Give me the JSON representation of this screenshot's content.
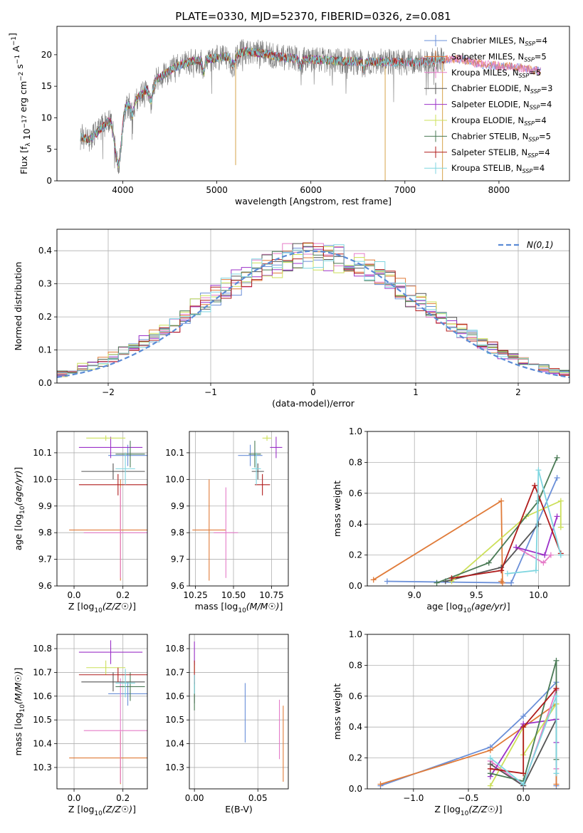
{
  "figure": {
    "title": "PLATE=0330, MJD=52370, FIBERID=0326, z=0.081"
  },
  "colors": {
    "Chabrier MILES": "#6a8fd8",
    "Salpeter MILES": "#e07b39",
    "Kroupa MILES": "#e57bc8",
    "Chabrier ELODIE": "#555555",
    "Salpeter ELODIE": "#9b30c8",
    "Kroupa ELODIE": "#cce05a",
    "Chabrier STELIB": "#4a7a55",
    "Salpeter STELIB": "#b01c1c",
    "Kroupa STELIB": "#7fd6e0"
  },
  "legend_spectrum": [
    {
      "name": "Chabrier MILES",
      "nssp": "4",
      "color": "#6a8fd8"
    },
    {
      "name": "Salpeter MILES",
      "nssp": "5",
      "color": "#e07b39"
    },
    {
      "name": "Kroupa MILES",
      "nssp": "5",
      "color": "#e57bc8"
    },
    {
      "name": "Chabrier ELODIE",
      "nssp": "3",
      "color": "#555555"
    },
    {
      "name": "Salpeter ELODIE",
      "nssp": "4",
      "color": "#9b30c8"
    },
    {
      "name": "Kroupa ELODIE",
      "nssp": "4",
      "color": "#cce05a"
    },
    {
      "name": "Chabrier STELIB",
      "nssp": "5",
      "color": "#4a7a55"
    },
    {
      "name": "Salpeter STELIB",
      "nssp": "4",
      "color": "#b01c1c"
    },
    {
      "name": "Kroupa STELIB",
      "nssp": "4",
      "color": "#7fd6e0"
    }
  ],
  "chart_data": [
    {
      "id": "spectrum",
      "type": "line",
      "xlabel": "wavelength [Angstrom, rest frame]",
      "ylabel": "Flux [f_λ 10^-17 erg cm^-2 s^-1 A^-1]",
      "xlim": [
        3300,
        8750
      ],
      "ylim": [
        0,
        24.5
      ],
      "xticks": [
        4000,
        5000,
        6000,
        7000,
        8000
      ],
      "yticks": [
        0,
        5,
        10,
        15,
        20
      ],
      "grid": false,
      "legend": "upper right",
      "continuum": [
        [
          3550,
          7
        ],
        [
          3650,
          6.5
        ],
        [
          3750,
          8
        ],
        [
          3850,
          9.5
        ],
        [
          3950,
          10.5
        ],
        [
          4050,
          12
        ],
        [
          4150,
          13
        ],
        [
          4250,
          14.5
        ],
        [
          4350,
          16
        ],
        [
          4450,
          17
        ],
        [
          4550,
          18
        ],
        [
          4700,
          18.8
        ],
        [
          4850,
          19.2
        ],
        [
          5000,
          19.5
        ],
        [
          5150,
          19.8
        ],
        [
          5300,
          20.5
        ],
        [
          5500,
          20.2
        ],
        [
          5700,
          19.6
        ],
        [
          5900,
          19.3
        ],
        [
          6100,
          19.2
        ],
        [
          6300,
          19.0
        ],
        [
          6500,
          18.9
        ],
        [
          6700,
          18.9
        ],
        [
          6900,
          18.8
        ],
        [
          7100,
          18.8
        ],
        [
          7300,
          19.0
        ],
        [
          7400,
          19.3
        ],
        [
          7600,
          19.3
        ],
        [
          7800,
          18.5
        ],
        [
          8000,
          18.2
        ],
        [
          8200,
          18.0
        ],
        [
          8400,
          17.5
        ],
        [
          8500,
          17.2
        ]
      ],
      "observed_range": [
        3550,
        7420
      ]
    },
    {
      "id": "residual_hist",
      "type": "histogram",
      "xlabel": "(data-model)/error",
      "ylabel": "Normed distribution",
      "xlim": [
        -2.5,
        2.5
      ],
      "ylim": [
        0,
        0.465
      ],
      "xticks": [
        -2,
        -1,
        0,
        1,
        2
      ],
      "yticks": [
        0.0,
        0.1,
        0.2,
        0.3,
        0.4
      ],
      "grid": true,
      "bin_width": 0.1,
      "reference_curve": "N(0,1)",
      "legend": "upper right"
    },
    {
      "id": "age_vs_Z",
      "type": "errorbar",
      "xlabel": "Z [log10(Z/Z☉)]",
      "ylabel": "age  [log10(age/yr)]",
      "xlim": [
        -0.07,
        0.3
      ],
      "ylim": [
        9.6,
        10.18
      ],
      "xticks": [
        0.0,
        0.2
      ],
      "yticks": [
        9.6,
        9.7,
        9.8,
        9.9,
        10.0,
        10.1
      ],
      "grid": true,
      "points": [
        {
          "model": "Chabrier MILES",
          "x": 0.22,
          "xerr": 0.08,
          "y": 10.09,
          "yerr": 0.04
        },
        {
          "model": "Salpeter MILES",
          "x": 0.19,
          "xerr": 0.21,
          "y": 9.81,
          "yerr": 0.19
        },
        {
          "model": "Kroupa MILES",
          "x": 0.19,
          "xerr": 0.15,
          "y": 9.8,
          "yerr": 0.17
        },
        {
          "model": "Chabrier ELODIE",
          "x": 0.16,
          "xerr": 0.13,
          "y": 10.03,
          "yerr": 0.03
        },
        {
          "model": "Salpeter ELODIE",
          "x": 0.15,
          "xerr": 0.13,
          "y": 10.12,
          "yerr": 0.04
        },
        {
          "model": "Kroupa ELODIE",
          "x": 0.13,
          "xerr": 0.08,
          "y": 10.155,
          "yerr": 0.01
        },
        {
          "model": "Chabrier STELIB",
          "x": 0.23,
          "xerr": 0.06,
          "y": 10.095,
          "yerr": 0.05
        },
        {
          "model": "Salpeter STELIB",
          "x": 0.18,
          "xerr": 0.16,
          "y": 9.98,
          "yerr": 0.04
        },
        {
          "model": "Kroupa STELIB",
          "x": 0.21,
          "xerr": 0.04,
          "y": 10.04,
          "yerr": 0.06
        }
      ]
    },
    {
      "id": "age_vs_mass",
      "type": "errorbar",
      "xlabel": "mass [log10(M/M☉)]",
      "ylabel": "",
      "xlim": [
        10.21,
        10.86
      ],
      "ylim": [
        9.6,
        10.18
      ],
      "xticks": [
        10.25,
        10.5,
        10.75
      ],
      "yticks": [
        9.6,
        9.7,
        9.8,
        9.9,
        10.0,
        10.1
      ],
      "grid": true,
      "points": [
        {
          "model": "Chabrier MILES",
          "x": 10.61,
          "xerr": 0.08,
          "y": 10.09,
          "yerr": 0.04
        },
        {
          "model": "Salpeter MILES",
          "x": 10.34,
          "xerr": 0.11,
          "y": 9.81,
          "yerr": 0.19
        },
        {
          "model": "Kroupa MILES",
          "x": 10.45,
          "xerr": 0.08,
          "y": 9.8,
          "yerr": 0.17
        },
        {
          "model": "Chabrier ELODIE",
          "x": 10.66,
          "xerr": 0.04,
          "y": 10.03,
          "yerr": 0.03
        },
        {
          "model": "Salpeter ELODIE",
          "x": 10.78,
          "xerr": 0.04,
          "y": 10.12,
          "yerr": 0.04
        },
        {
          "model": "Kroupa ELODIE",
          "x": 10.72,
          "xerr": 0.03,
          "y": 10.155,
          "yerr": 0.01
        },
        {
          "model": "Chabrier STELIB",
          "x": 10.64,
          "xerr": 0.04,
          "y": 10.095,
          "yerr": 0.05
        },
        {
          "model": "Salpeter STELIB",
          "x": 10.69,
          "xerr": 0.05,
          "y": 9.98,
          "yerr": 0.04
        },
        {
          "model": "Kroupa STELIB",
          "x": 10.65,
          "xerr": 0.03,
          "y": 10.04,
          "yerr": 0.06
        }
      ]
    },
    {
      "id": "weight_vs_age",
      "type": "line",
      "xlabel": "age  [log10(age/yr)]",
      "ylabel": "mass weight",
      "xlim": [
        8.62,
        10.25
      ],
      "ylim": [
        0,
        1.0
      ],
      "xticks": [
        9.0,
        9.5,
        10.0
      ],
      "yticks": [
        0.0,
        0.2,
        0.4,
        0.6,
        0.8,
        1.0
      ],
      "grid": true,
      "series": [
        {
          "model": "Chabrier MILES",
          "x": [
            8.78,
            9.78,
            10.15
          ],
          "y": [
            0.03,
            0.02,
            0.7
          ]
        },
        {
          "model": "Salpeter MILES",
          "x": [
            8.67,
            9.7,
            9.71,
            9.7
          ],
          "y": [
            0.04,
            0.55,
            0.02,
            0.03
          ]
        },
        {
          "model": "Kroupa MILES",
          "x": [
            9.82,
            10.04,
            10.1
          ],
          "y": [
            0.25,
            0.15,
            0.2
          ]
        },
        {
          "model": "Chabrier ELODIE",
          "x": [
            9.25,
            9.7,
            10.0
          ],
          "y": [
            0.03,
            0.12,
            0.4
          ]
        },
        {
          "model": "Salpeter ELODIE",
          "x": [
            9.82,
            10.05,
            10.15
          ],
          "y": [
            0.25,
            0.2,
            0.45
          ]
        },
        {
          "model": "Kroupa ELODIE",
          "x": [
            9.3,
            9.9,
            10.18,
            10.18
          ],
          "y": [
            0.03,
            0.45,
            0.55,
            0.38
          ]
        },
        {
          "model": "Chabrier STELIB",
          "x": [
            9.18,
            9.6,
            10.0,
            10.15
          ],
          "y": [
            0.02,
            0.15,
            0.55,
            0.83
          ]
        },
        {
          "model": "Salpeter STELIB",
          "x": [
            9.3,
            9.7,
            9.97,
            10.18
          ],
          "y": [
            0.05,
            0.1,
            0.65,
            0.21
          ]
        },
        {
          "model": "Kroupa STELIB",
          "x": [
            9.75,
            9.98,
            10.0,
            10.18
          ],
          "y": [
            0.08,
            0.1,
            0.75,
            0.2
          ]
        }
      ]
    },
    {
      "id": "mass_vs_Z",
      "type": "errorbar",
      "xlabel": "Z [log10(Z/Z☉)]",
      "ylabel": "mass [log10(M/M☉)]",
      "xlim": [
        -0.07,
        0.3
      ],
      "ylim": [
        10.21,
        10.86
      ],
      "xticks": [
        0.0,
        0.2
      ],
      "yticks": [
        10.3,
        10.4,
        10.5,
        10.6,
        10.7,
        10.8
      ],
      "grid": true,
      "points": [
        {
          "model": "Chabrier MILES",
          "x": 0.22,
          "xerr": 0.08,
          "y": 10.61,
          "yerr": 0.05
        },
        {
          "model": "Salpeter MILES",
          "x": 0.19,
          "xerr": 0.21,
          "y": 10.34,
          "yerr": 0.11
        },
        {
          "model": "Kroupa MILES",
          "x": 0.19,
          "xerr": 0.15,
          "y": 10.455,
          "yerr": 0.22
        },
        {
          "model": "Chabrier ELODIE",
          "x": 0.16,
          "xerr": 0.13,
          "y": 10.66,
          "yerr": 0.04
        },
        {
          "model": "Salpeter ELODIE",
          "x": 0.15,
          "xerr": 0.13,
          "y": 10.785,
          "yerr": 0.05
        },
        {
          "model": "Kroupa ELODIE",
          "x": 0.13,
          "xerr": 0.08,
          "y": 10.72,
          "yerr": 0.03
        },
        {
          "model": "Chabrier STELIB",
          "x": 0.23,
          "xerr": 0.06,
          "y": 10.64,
          "yerr": 0.06
        },
        {
          "model": "Salpeter STELIB",
          "x": 0.18,
          "xerr": 0.16,
          "y": 10.69,
          "yerr": 0.03
        },
        {
          "model": "Kroupa STELIB",
          "x": 0.21,
          "xerr": 0.04,
          "y": 10.655,
          "yerr": 0.06
        }
      ]
    },
    {
      "id": "mass_vs_EBV",
      "type": "errorbar",
      "xlabel": "E(B-V)",
      "ylabel": "",
      "xlim": [
        -0.004,
        0.074
      ],
      "ylim": [
        10.21,
        10.86
      ],
      "xticks": [
        0.0,
        0.05
      ],
      "yticks": [
        10.3,
        10.4,
        10.5,
        10.6,
        10.7,
        10.8
      ],
      "grid": true,
      "points": [
        {
          "model": "Chabrier MILES",
          "x": 0.04,
          "xerr": 0,
          "y": 10.53,
          "yerr": 0.125
        },
        {
          "model": "Salpeter MILES",
          "x": 0.07,
          "xerr": 0,
          "y": 10.4,
          "yerr": 0.16
        },
        {
          "model": "Kroupa MILES",
          "x": 0.067,
          "xerr": 0,
          "y": 10.46,
          "yerr": 0.125
        },
        {
          "model": "Chabrier ELODIE",
          "x": 0.0,
          "xerr": 0,
          "y": 10.63,
          "yerr": 0.06
        },
        {
          "model": "Salpeter ELODIE",
          "x": 0.0,
          "xerr": 0,
          "y": 10.78,
          "yerr": 0.05
        },
        {
          "model": "Kroupa ELODIE",
          "x": 0.0,
          "xerr": 0,
          "y": 10.72,
          "yerr": 0.02
        },
        {
          "model": "Chabrier STELIB",
          "x": 0.0,
          "xerr": 0,
          "y": 10.6,
          "yerr": 0.06
        },
        {
          "model": "Salpeter STELIB",
          "x": 0.0,
          "xerr": 0,
          "y": 10.7,
          "yerr": 0.05
        },
        {
          "model": "Kroupa STELIB",
          "x": 0.0,
          "xerr": 0,
          "y": 10.65,
          "yerr": 0.04
        }
      ]
    },
    {
      "id": "weight_vs_Z",
      "type": "line",
      "xlabel": "Z [log10(Z/Z☉)]",
      "ylabel": "mass weight",
      "xlim": [
        -1.42,
        0.42
      ],
      "ylim": [
        0,
        1.0
      ],
      "xticks": [
        -1.0,
        -0.5,
        0.0
      ],
      "yticks": [
        0.0,
        0.2,
        0.4,
        0.6,
        0.8,
        1.0
      ],
      "grid": true,
      "series": [
        {
          "model": "Chabrier MILES",
          "x": [
            -1.3,
            -0.3,
            0.0,
            0.3,
            0.3
          ],
          "y": [
            0.02,
            0.27,
            0.47,
            0.69,
            0.02
          ]
        },
        {
          "model": "Salpeter MILES",
          "x": [
            -1.3,
            -0.3,
            0.3,
            0.3
          ],
          "y": [
            0.03,
            0.25,
            0.55,
            0.03
          ]
        },
        {
          "model": "Kroupa MILES",
          "x": [
            -0.3,
            0.0,
            0.3,
            0.3
          ],
          "y": [
            0.18,
            0.02,
            0.64,
            0.13
          ]
        },
        {
          "model": "Chabrier ELODIE",
          "x": [
            -0.3,
            0.0,
            0.3
          ],
          "y": [
            0.16,
            0.02,
            0.45
          ]
        },
        {
          "model": "Salpeter ELODIE",
          "x": [
            -0.3,
            0.0,
            0.3,
            0.3
          ],
          "y": [
            0.08,
            0.42,
            0.45,
            0.3
          ]
        },
        {
          "model": "Kroupa ELODIE",
          "x": [
            -0.3,
            0.0,
            0.0,
            0.3
          ],
          "y": [
            0.02,
            0.4,
            0.22,
            0.55
          ]
        },
        {
          "model": "Chabrier STELIB",
          "x": [
            -0.3,
            0.0,
            0.3,
            0.3
          ],
          "y": [
            0.1,
            0.05,
            0.83,
            0.19
          ]
        },
        {
          "model": "Salpeter STELIB",
          "x": [
            -0.3,
            0.0,
            0.0,
            0.3
          ],
          "y": [
            0.13,
            0.1,
            0.4,
            0.65
          ]
        },
        {
          "model": "Kroupa STELIB",
          "x": [
            -0.3,
            0.0,
            0.3,
            0.3
          ],
          "y": [
            0.2,
            0.03,
            0.6,
            0.1
          ]
        }
      ]
    }
  ]
}
